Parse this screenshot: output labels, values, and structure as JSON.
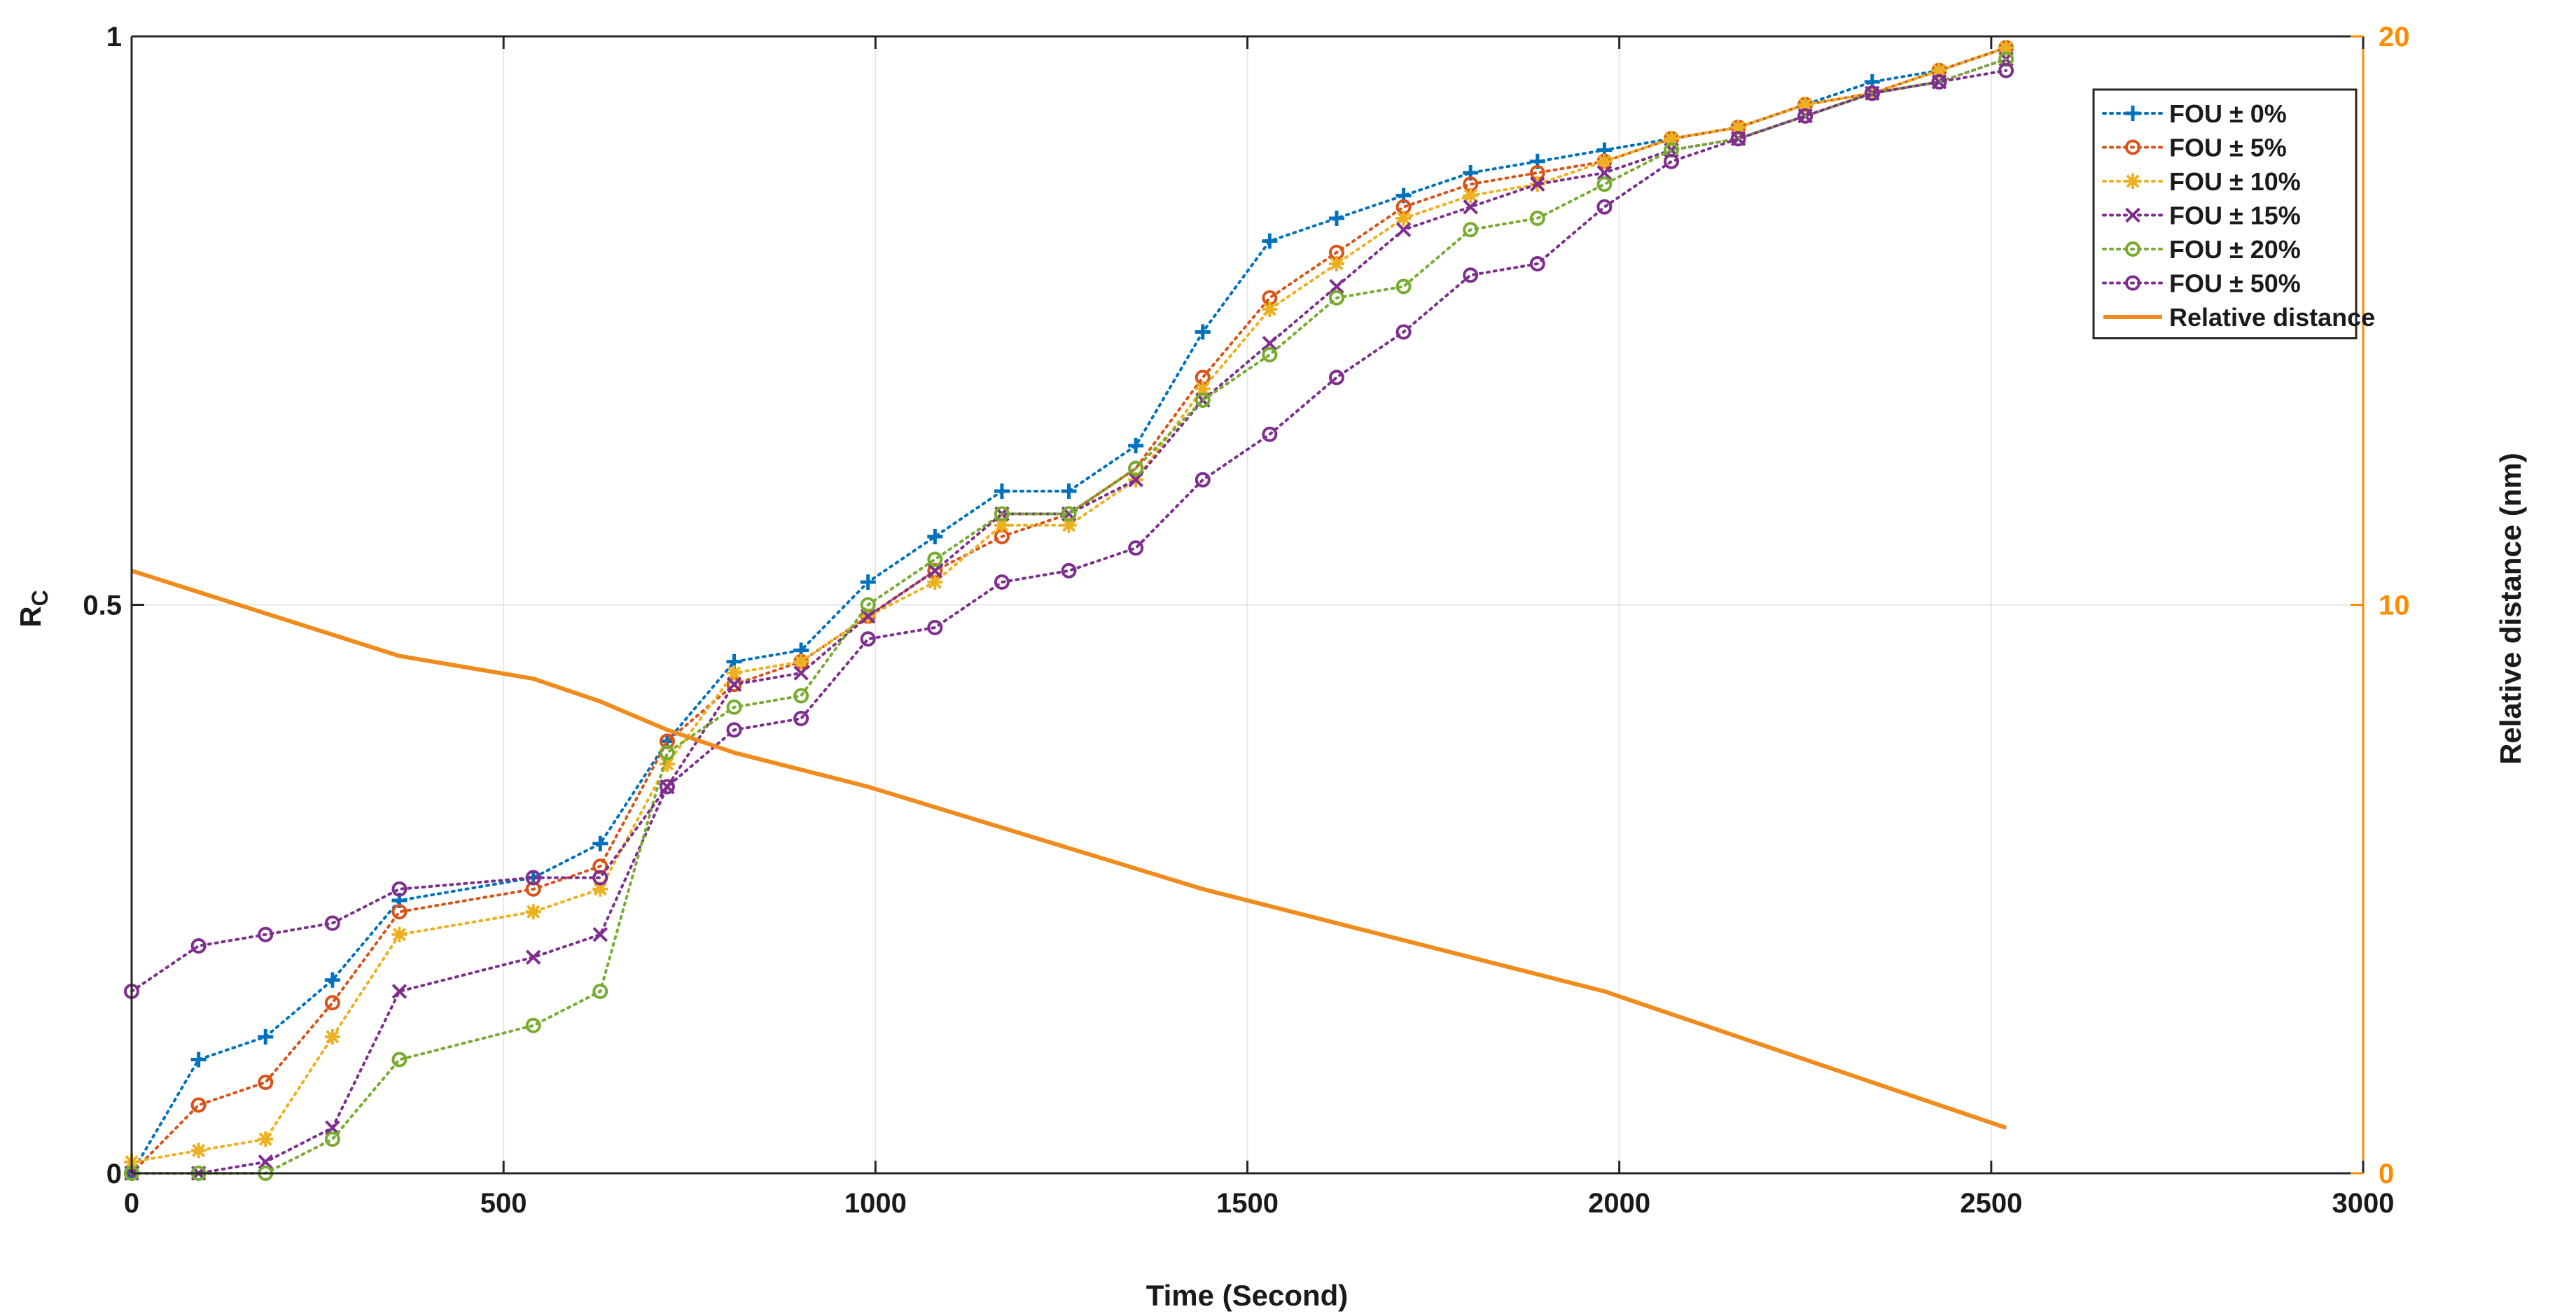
{
  "chart_data": {
    "type": "line",
    "title": "",
    "xlabel": "Time (Second)",
    "ylabel_main": "R",
    "ylabel_sub": "C",
    "y2label": "Relative distance (nm)",
    "xlim": [
      0,
      3000
    ],
    "ylim": [
      0,
      1
    ],
    "y2lim": [
      0,
      20
    ],
    "xticks": [
      0,
      500,
      1000,
      1500,
      2000,
      2500,
      3000
    ],
    "xtick_labels": [
      "0",
      "500",
      "1000",
      "1500",
      "2000",
      "2500",
      "3000"
    ],
    "yticks": [
      0,
      0.5,
      1
    ],
    "ytick_labels": [
      "0",
      "0.5",
      "1"
    ],
    "y2ticks": [
      0,
      10,
      20
    ],
    "y2tick_labels": [
      "0",
      "10",
      "20"
    ],
    "grid": true,
    "legend_position": "top-right",
    "x": [
      0,
      90,
      180,
      270,
      360,
      540,
      630,
      720,
      810,
      900,
      990,
      1080,
      1170,
      1260,
      1350,
      1440,
      1530,
      1620,
      1710,
      1800,
      1890,
      1980,
      2070,
      2160,
      2250,
      2340,
      2430,
      2520
    ],
    "series": [
      {
        "name": "FOU ± 0%",
        "color": "#0072bd",
        "marker": "plus",
        "values": [
          0,
          0.1,
          0.12,
          0.17,
          0.24,
          0.26,
          0.29,
          0.38,
          0.45,
          0.46,
          0.52,
          0.56,
          0.6,
          0.6,
          0.64,
          0.74,
          0.82,
          0.84,
          0.86,
          0.88,
          0.89,
          0.9,
          0.91,
          0.92,
          0.94,
          0.96,
          0.97,
          0.99
        ]
      },
      {
        "name": "FOU ± 5%",
        "color": "#d95319",
        "marker": "circle",
        "values": [
          0,
          0.06,
          0.08,
          0.15,
          0.23,
          0.25,
          0.27,
          0.38,
          0.43,
          0.45,
          0.49,
          0.53,
          0.56,
          0.58,
          0.62,
          0.7,
          0.77,
          0.81,
          0.85,
          0.87,
          0.88,
          0.89,
          0.91,
          0.92,
          0.94,
          0.95,
          0.97,
          0.99
        ]
      },
      {
        "name": "FOU ± 10%",
        "color": "#edb120",
        "marker": "star",
        "values": [
          0.01,
          0.02,
          0.03,
          0.12,
          0.21,
          0.23,
          0.25,
          0.36,
          0.44,
          0.45,
          0.49,
          0.52,
          0.57,
          0.57,
          0.61,
          0.69,
          0.76,
          0.8,
          0.84,
          0.86,
          0.87,
          0.89,
          0.91,
          0.92,
          0.94,
          0.95,
          0.97,
          0.99
        ]
      },
      {
        "name": "FOU ± 15%",
        "color": "#7e2f8e",
        "marker": "x",
        "values": [
          0,
          0,
          0.01,
          0.04,
          0.16,
          0.19,
          0.21,
          0.34,
          0.43,
          0.44,
          0.49,
          0.53,
          0.58,
          0.58,
          0.61,
          0.68,
          0.73,
          0.78,
          0.83,
          0.85,
          0.87,
          0.88,
          0.9,
          0.91,
          0.93,
          0.95,
          0.96,
          0.98
        ]
      },
      {
        "name": "FOU ± 20%",
        "color": "#77ac30",
        "marker": "circle",
        "values": [
          0,
          0,
          0,
          0.03,
          0.1,
          0.13,
          0.16,
          0.37,
          0.41,
          0.42,
          0.5,
          0.54,
          0.58,
          0.58,
          0.62,
          0.68,
          0.72,
          0.77,
          0.78,
          0.83,
          0.84,
          0.87,
          0.9,
          0.91,
          0.93,
          0.95,
          0.96,
          0.98
        ]
      },
      {
        "name": "FOU ± 50%",
        "color": "#7e2f8e",
        "marker": "circle",
        "values": [
          0.16,
          0.2,
          0.21,
          0.22,
          0.25,
          0.26,
          0.26,
          0.34,
          0.39,
          0.4,
          0.47,
          0.48,
          0.52,
          0.53,
          0.55,
          0.61,
          0.65,
          0.7,
          0.74,
          0.79,
          0.8,
          0.85,
          0.89,
          0.91,
          0.93,
          0.95,
          0.96,
          0.97
        ]
      }
    ],
    "relative_distance": {
      "name": "Relative distance",
      "color": "#f08c1e",
      "axis": "right",
      "x": [
        0,
        360,
        540,
        630,
        720,
        810,
        990,
        1440,
        1980,
        2520
      ],
      "values": [
        10.6,
        9.1,
        8.7,
        8.3,
        7.8,
        7.4,
        6.8,
        5.0,
        3.2,
        0.8
      ]
    }
  }
}
